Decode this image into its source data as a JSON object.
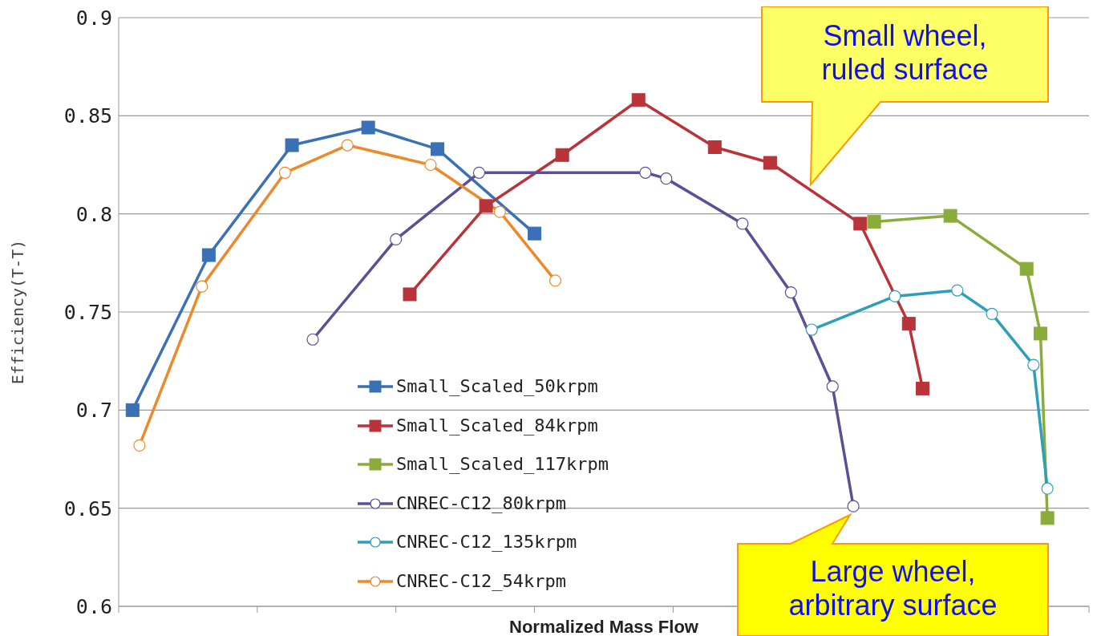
{
  "chart_data": {
    "type": "line",
    "xlabel": "Normalized Mass Flow",
    "ylabel": "Efficiency(T-T)",
    "categories": [
      null,
      null,
      null,
      null,
      null,
      null,
      null,
      null,
      null,
      null,
      null,
      null,
      null,
      null,
      null,
      null,
      null,
      null,
      null,
      null,
      null,
      null,
      null,
      null,
      null,
      null,
      null,
      null,
      null,
      null,
      null,
      null,
      null,
      null,
      null,
      null,
      null,
      null,
      null,
      null,
      null,
      null,
      null,
      null,
      null,
      null,
      null,
      null,
      null,
      null,
      null,
      null,
      null,
      null,
      null,
      null,
      null,
      null,
      null,
      null,
      null,
      null,
      null,
      null,
      null,
      null,
      null,
      null,
      null,
      null,
      null,
      null,
      null,
      null,
      null,
      null,
      null,
      null,
      null,
      null,
      null,
      null,
      null,
      null,
      null,
      null,
      null,
      null,
      null,
      null,
      null,
      null,
      null,
      null,
      null,
      null,
      null,
      null,
      null,
      null,
      null,
      null,
      null,
      null,
      null,
      null,
      null,
      null,
      null,
      null,
      null,
      null,
      null,
      null,
      null,
      null,
      null,
      null,
      null,
      null,
      null,
      null,
      null,
      null,
      null,
      null,
      null,
      null,
      null,
      null,
      null,
      null,
      null,
      null,
      null,
      null,
      null,
      null,
      null,
      null,
      null
    ],
    "ylim": [
      0.6,
      0.9
    ],
    "yticks": [
      0.6,
      0.65,
      0.7,
      0.75,
      0.8,
      0.85,
      0.9
    ],
    "grid": "y",
    "legend": "bottom left",
    "series": [
      {
        "name": "Small_Scaled_50krpm",
        "color": "#3a70b5",
        "marker": "square",
        "values": [
          null,
          null,
          0.7,
          null,
          null,
          null,
          null,
          null,
          null,
          null,
          null,
          null,
          null,
          0.779,
          null,
          null,
          null,
          null,
          null,
          null,
          null,
          null,
          null,
          null,
          null,
          0.835,
          null,
          null,
          null,
          null,
          null,
          null,
          null,
          null,
          null,
          null,
          0.844,
          null,
          null,
          null,
          null,
          null,
          null,
          null,
          null,
          null,
          0.833,
          null,
          null,
          null,
          null,
          null,
          null,
          null,
          null,
          null,
          null,
          null,
          null,
          null,
          0.79,
          null,
          null,
          null,
          null,
          null,
          null,
          null,
          null,
          null,
          null,
          null,
          null,
          null,
          null,
          null,
          null,
          null,
          null,
          null,
          null,
          null,
          null,
          null,
          null,
          null,
          null,
          null,
          null,
          null,
          null,
          null,
          null,
          null,
          null,
          null,
          null,
          null,
          null,
          null,
          null,
          null,
          null,
          null,
          null,
          null,
          null,
          null,
          null,
          null,
          null,
          null,
          null,
          null,
          null,
          null,
          null,
          null,
          null,
          null,
          null,
          null,
          null,
          null,
          null,
          null,
          null,
          null,
          null,
          null,
          null,
          null,
          null,
          null,
          null,
          null,
          null,
          null,
          null,
          null,
          null
        ]
      },
      {
        "name": "Small_Scaled_84krpm",
        "color": "#b8343a",
        "marker": "square",
        "values": [
          null,
          null,
          null,
          null,
          null,
          null,
          null,
          null,
          null,
          null,
          null,
          null,
          null,
          null,
          null,
          null,
          null,
          null,
          null,
          null,
          null,
          null,
          null,
          null,
          null,
          null,
          null,
          null,
          null,
          null,
          null,
          null,
          null,
          null,
          null,
          null,
          null,
          null,
          null,
          null,
          null,
          null,
          0.759,
          null,
          null,
          null,
          null,
          null,
          null,
          null,
          null,
          null,
          null,
          0.804,
          null,
          null,
          null,
          null,
          null,
          null,
          null,
          null,
          null,
          null,
          0.83,
          null,
          null,
          null,
          null,
          null,
          null,
          null,
          null,
          null,
          null,
          0.858,
          null,
          null,
          null,
          null,
          null,
          null,
          null,
          null,
          null,
          null,
          0.834,
          null,
          null,
          null,
          null,
          null,
          null,
          null,
          0.826,
          null,
          null,
          null,
          null,
          null,
          null,
          null,
          null,
          null,
          null,
          null,
          null,
          0.795,
          null,
          null,
          null,
          null,
          null,
          null,
          0.744,
          null,
          0.711,
          null,
          null,
          null,
          null,
          null,
          null,
          null,
          null,
          null,
          null,
          null,
          null,
          null,
          null,
          null,
          null,
          null,
          null,
          null,
          null,
          null,
          null,
          null,
          null
        ]
      },
      {
        "name": "Small_Scaled_117krpm",
        "color": "#8aac3a",
        "marker": "square",
        "values": [
          null,
          null,
          null,
          null,
          null,
          null,
          null,
          null,
          null,
          null,
          null,
          null,
          null,
          null,
          null,
          null,
          null,
          null,
          null,
          null,
          null,
          null,
          null,
          null,
          null,
          null,
          null,
          null,
          null,
          null,
          null,
          null,
          null,
          null,
          null,
          null,
          null,
          null,
          null,
          null,
          null,
          null,
          null,
          null,
          null,
          null,
          null,
          null,
          null,
          null,
          null,
          null,
          null,
          null,
          null,
          null,
          null,
          null,
          null,
          null,
          null,
          null,
          null,
          null,
          null,
          null,
          null,
          null,
          null,
          null,
          null,
          null,
          null,
          null,
          null,
          null,
          null,
          null,
          null,
          null,
          null,
          null,
          null,
          null,
          null,
          null,
          null,
          null,
          null,
          null,
          null,
          null,
          null,
          null,
          null,
          null,
          null,
          null,
          null,
          null,
          null,
          null,
          null,
          null,
          null,
          null,
          null,
          null,
          null,
          0.796,
          null,
          null,
          null,
          null,
          null,
          null,
          null,
          null,
          null,
          null,
          0.799,
          null,
          null,
          null,
          null,
          null,
          null,
          null,
          null,
          null,
          null,
          0.772,
          null,
          0.739,
          0.645,
          null,
          null,
          null,
          null,
          null,
          null
        ]
      },
      {
        "name": "CNREC-C12_80krpm",
        "color": "#5c4f96",
        "marker": "circle",
        "values": [
          null,
          null,
          null,
          null,
          null,
          null,
          null,
          null,
          null,
          null,
          null,
          null,
          null,
          null,
          null,
          null,
          null,
          null,
          null,
          null,
          null,
          null,
          null,
          null,
          null,
          null,
          null,
          null,
          0.736,
          null,
          null,
          null,
          null,
          null,
          null,
          null,
          null,
          null,
          null,
          null,
          0.787,
          null,
          null,
          null,
          null,
          null,
          null,
          null,
          null,
          null,
          null,
          null,
          0.821,
          null,
          null,
          null,
          null,
          null,
          null,
          null,
          null,
          null,
          null,
          null,
          null,
          null,
          null,
          null,
          null,
          null,
          null,
          null,
          null,
          null,
          null,
          null,
          0.821,
          null,
          null,
          0.818,
          null,
          null,
          null,
          null,
          null,
          null,
          null,
          null,
          null,
          null,
          0.795,
          null,
          null,
          null,
          null,
          null,
          null,
          0.76,
          null,
          null,
          null,
          null,
          null,
          0.712,
          null,
          null,
          0.651,
          null,
          null,
          null,
          null,
          null,
          null,
          null,
          null,
          null,
          null,
          null,
          null,
          null,
          null,
          null,
          null,
          null,
          null,
          null,
          null,
          null,
          null,
          null,
          null,
          null,
          null,
          null,
          null,
          null,
          null,
          null,
          null,
          null,
          null
        ]
      },
      {
        "name": "CNREC-C12_135krpm",
        "color": "#2e9fba",
        "marker": "circle",
        "values": [
          null,
          null,
          null,
          null,
          null,
          null,
          null,
          null,
          null,
          null,
          null,
          null,
          null,
          null,
          null,
          null,
          null,
          null,
          null,
          null,
          null,
          null,
          null,
          null,
          null,
          null,
          null,
          null,
          null,
          null,
          null,
          null,
          null,
          null,
          null,
          null,
          null,
          null,
          null,
          null,
          null,
          null,
          null,
          null,
          null,
          null,
          null,
          null,
          null,
          null,
          null,
          null,
          null,
          null,
          null,
          null,
          null,
          null,
          null,
          null,
          null,
          null,
          null,
          null,
          null,
          null,
          null,
          null,
          null,
          null,
          null,
          null,
          null,
          null,
          null,
          null,
          null,
          null,
          null,
          null,
          null,
          null,
          null,
          null,
          null,
          null,
          null,
          null,
          null,
          null,
          null,
          null,
          null,
          null,
          null,
          null,
          null,
          null,
          null,
          null,
          0.741,
          null,
          null,
          null,
          null,
          null,
          null,
          null,
          null,
          null,
          null,
          null,
          0.758,
          null,
          null,
          null,
          null,
          null,
          null,
          null,
          null,
          0.761,
          null,
          null,
          null,
          null,
          0.749,
          null,
          null,
          null,
          null,
          null,
          0.723,
          null,
          0.66,
          null,
          null,
          null,
          null,
          null,
          null
        ]
      },
      {
        "name": "CNREC-C12_54krpm",
        "color": "#ea8a2c",
        "marker": "circle",
        "values": [
          null,
          null,
          null,
          0.682,
          null,
          null,
          null,
          null,
          null,
          null,
          null,
          null,
          0.763,
          null,
          null,
          null,
          null,
          null,
          null,
          null,
          null,
          null,
          null,
          null,
          0.821,
          null,
          null,
          null,
          null,
          null,
          null,
          null,
          null,
          0.835,
          null,
          null,
          null,
          null,
          null,
          null,
          null,
          null,
          null,
          null,
          null,
          0.825,
          null,
          null,
          null,
          null,
          null,
          null,
          null,
          null,
          null,
          0.801,
          null,
          null,
          null,
          null,
          null,
          null,
          null,
          0.766,
          null,
          null,
          null,
          null,
          null,
          null,
          null,
          null,
          null,
          null,
          null,
          null,
          null,
          null,
          null,
          null,
          null,
          null,
          null,
          null,
          null,
          null,
          null,
          null,
          null,
          null,
          null,
          null,
          null,
          null,
          null,
          null,
          null,
          null,
          null,
          null,
          null,
          null,
          null,
          null,
          null,
          null,
          null,
          null,
          null,
          null,
          null,
          null,
          null,
          null,
          null,
          null,
          null,
          null,
          null,
          null,
          null,
          null,
          null,
          null,
          null,
          null,
          null,
          null,
          null,
          null,
          null,
          null,
          null,
          null,
          null,
          null,
          null,
          null,
          null,
          null,
          null
        ]
      }
    ],
    "annotations": [
      "Small wheel, ruled surface",
      "Large wheel, arbitrary surface"
    ]
  }
}
